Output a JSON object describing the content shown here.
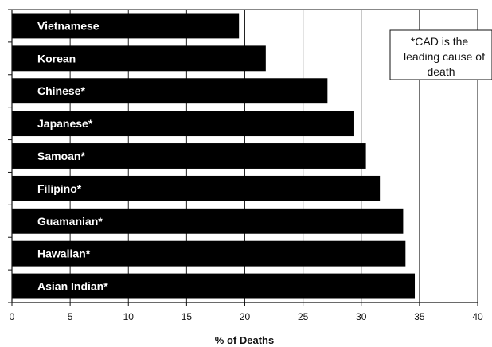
{
  "chart_data": {
    "type": "bar",
    "orientation": "horizontal",
    "categories": [
      "Vietnamese",
      "Korean",
      "Chinese*",
      "Japanese*",
      "Samoan*",
      "Filipino*",
      "Guamanian*",
      "Hawaiian*",
      "Asian Indian*"
    ],
    "values": [
      19.5,
      21.8,
      27.1,
      29.4,
      30.4,
      31.6,
      33.6,
      33.8,
      34.6
    ],
    "xlabel": "% of Deaths",
    "ylabel": "",
    "xlim": [
      0,
      40
    ],
    "xticks": [
      "0",
      "5",
      "10",
      "15",
      "20",
      "25",
      "30",
      "35",
      "40"
    ],
    "grid": "vertical",
    "bar_color": "#000000",
    "annotation": {
      "lines": [
        "*CAD is the",
        "leading cause of",
        "death"
      ],
      "placement": "top-right"
    }
  }
}
